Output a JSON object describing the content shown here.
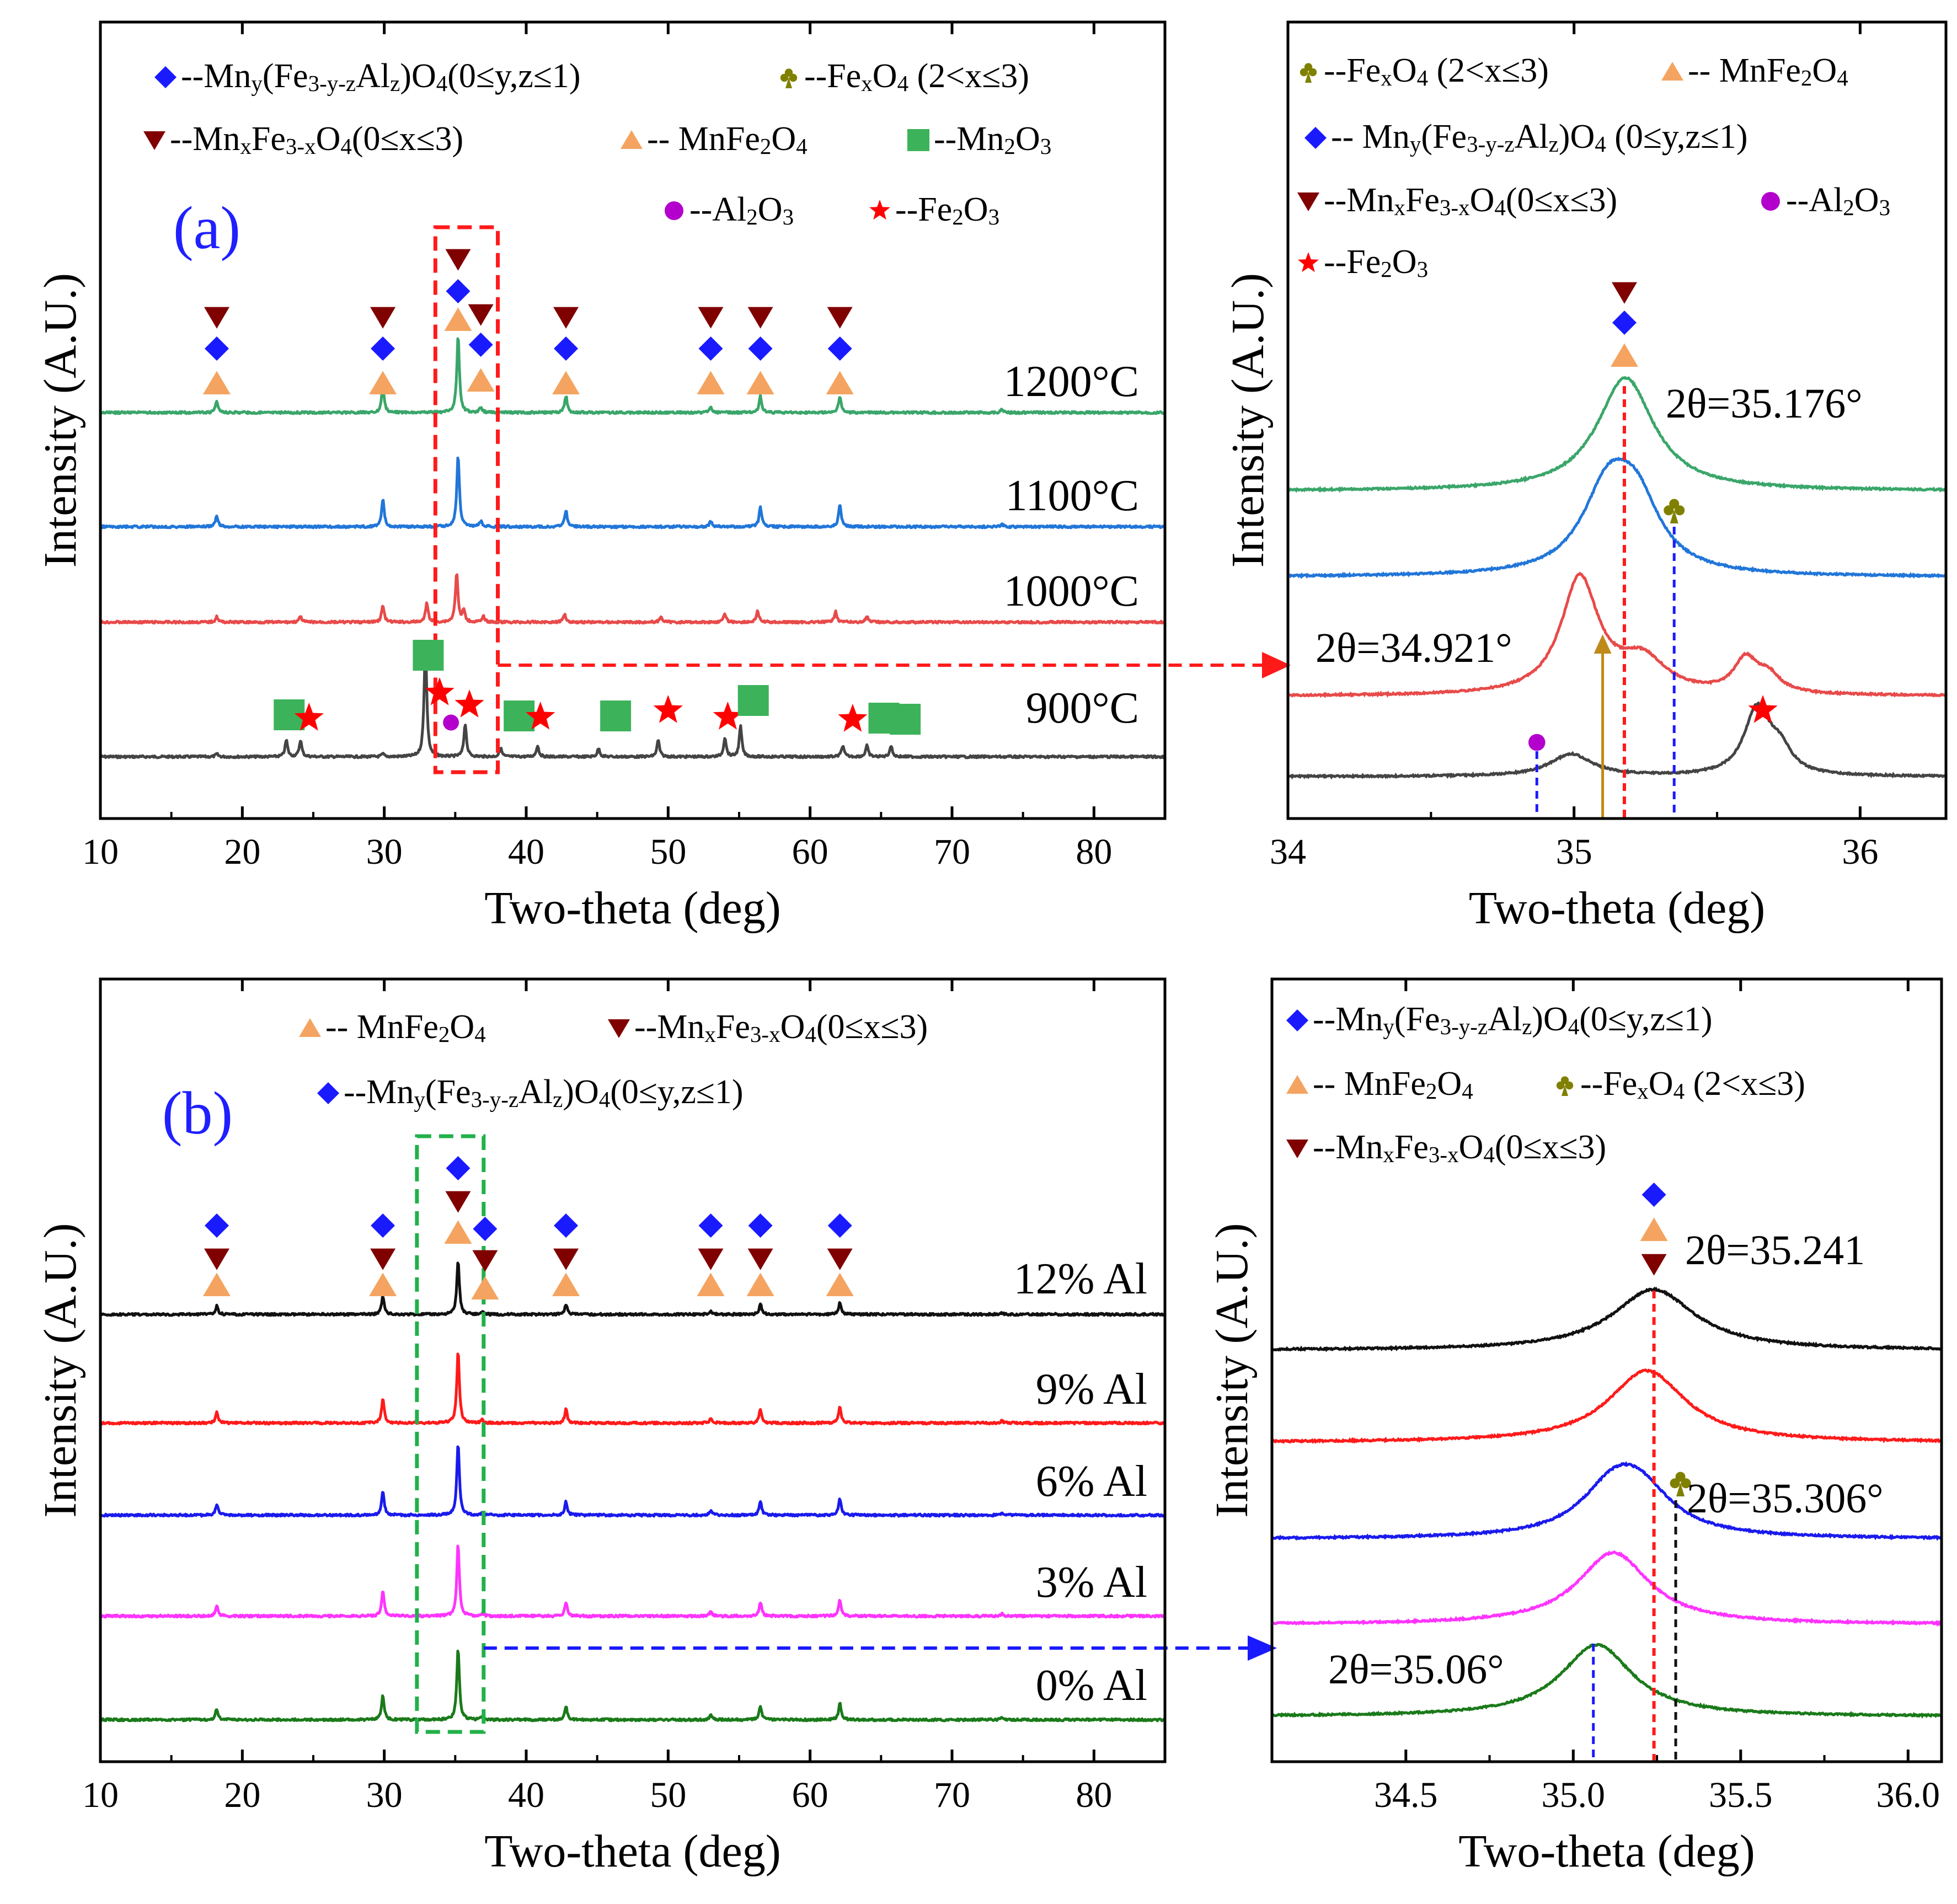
{
  "phases": {
    "spinel_al": "--Mn<sub>y</sub>(Fe<sub>3-y-z</sub>Al<sub>z</sub>)O<sub>4</sub>(0≤y,z≤1)",
    "fexo4": "--Fe<sub>x</sub>O<sub>4</sub> (2<x≤3)",
    "mnxfe": "--Mn<sub>x</sub>Fe<sub>3-x</sub>O<sub>4</sub>(0≤x≤3)",
    "mnfe2o4": "-- MnFe<sub>2</sub>O<sub>4</sub>",
    "mn2o3": "--Mn<sub>2</sub>O<sub>3</sub>",
    "al2o3": "--Al<sub>2</sub>O<sub>3</sub>",
    "fe2o3": "--Fe<sub>2</sub>O<sub>3</sub>",
    "spinel_al_spaced": "-- Mn<sub>y</sub>(Fe<sub>3-y-z</sub>Al<sub>z</sub>)O<sub>4</sub> (0≤y,z≤1)"
  },
  "colors": {
    "spinel_al": "#1a1aff",
    "fexo4": "#808000",
    "mnxfe": "#800000",
    "mnfe2o4": "#f4a460",
    "mn2o3": "#3cb35a",
    "al2o3": "#b300cc",
    "fe2o3": "#ff0000"
  },
  "chart_data": [
    {
      "id": "a_main",
      "type": "line",
      "panel_label": "(a)",
      "xlabel": "Two-theta (deg)",
      "ylabel": "Intensity (A.U.)",
      "xlim": [
        10,
        85
      ],
      "xticks": [
        10,
        20,
        30,
        40,
        50,
        60,
        70,
        80
      ],
      "ylim": [
        0,
        1
      ],
      "peaks_common": [
        18.2,
        29.9,
        35.2,
        36.8,
        42.8,
        53.0,
        56.5,
        62.1,
        73.5
      ],
      "series": [
        {
          "name": "900°C",
          "color": "#444444",
          "offset": 0.11,
          "peaks": [
            [
              18.2,
              0.005
            ],
            [
              23.1,
              0.03
            ],
            [
              24.1,
              0.03
            ],
            [
              29.9,
              0.005
            ],
            [
              32.9,
              0.21
            ],
            [
              35.7,
              0.06
            ],
            [
              38.2,
              0.015
            ],
            [
              40.8,
              0.02
            ],
            [
              45.1,
              0.015
            ],
            [
              49.3,
              0.03
            ],
            [
              54.0,
              0.035
            ],
            [
              55.1,
              0.055
            ],
            [
              62.3,
              0.02
            ],
            [
              64.0,
              0.02
            ],
            [
              65.7,
              0.02
            ]
          ]
        },
        {
          "name": "1000°C",
          "color": "#e84a4a",
          "offset": 0.375,
          "peaks": [
            [
              18.2,
              0.01
            ],
            [
              24.1,
              0.01
            ],
            [
              29.9,
              0.03
            ],
            [
              33.0,
              0.035
            ],
            [
              35.1,
              0.09
            ],
            [
              35.6,
              0.02
            ],
            [
              37.0,
              0.01
            ],
            [
              42.7,
              0.015
            ],
            [
              49.5,
              0.01
            ],
            [
              54.0,
              0.015
            ],
            [
              56.3,
              0.02
            ],
            [
              61.8,
              0.02
            ],
            [
              64.0,
              0.01
            ]
          ]
        },
        {
          "name": "1100°C",
          "color": "#2176d9",
          "offset": 0.6,
          "peaks": [
            [
              18.2,
              0.02
            ],
            [
              29.9,
              0.05
            ],
            [
              35.2,
              0.13
            ],
            [
              36.8,
              0.01
            ],
            [
              42.8,
              0.03
            ],
            [
              53.0,
              0.01
            ],
            [
              56.5,
              0.035
            ],
            [
              62.1,
              0.04
            ],
            [
              73.5,
              0.005
            ]
          ]
        },
        {
          "name": "1200°C",
          "color": "#3aa66a",
          "offset": 0.84,
          "peaks": [
            [
              18.2,
              0.02
            ],
            [
              29.9,
              0.05
            ],
            [
              35.2,
              0.14
            ],
            [
              36.8,
              0.01
            ],
            [
              42.8,
              0.03
            ],
            [
              53.0,
              0.01
            ],
            [
              56.5,
              0.03
            ],
            [
              62.1,
              0.03
            ],
            [
              73.5,
              0.005
            ]
          ]
        }
      ],
      "legend": [
        {
          "phase": "spinel_al",
          "order": 1
        },
        {
          "phase": "fexo4",
          "order": 2
        },
        {
          "phase": "mnxfe",
          "order": 3
        },
        {
          "phase": "mnfe2o4",
          "order": 4
        },
        {
          "phase": "mn2o3",
          "order": 5
        },
        {
          "phase": "al2o3",
          "order": 6
        },
        {
          "phase": "fe2o3",
          "order": 7
        }
      ],
      "highlight_x_range": [
        33.6,
        38.0
      ]
    },
    {
      "id": "a_zoom",
      "type": "line",
      "xlabel": "Two-theta (deg)",
      "ylabel": "Intensity (A.U.)",
      "xlim": [
        34,
        36.3
      ],
      "xticks": [
        34,
        35,
        36
      ],
      "series": [
        {
          "name": "900°C",
          "color": "#444444"
        },
        {
          "name": "1000°C",
          "color": "#e84a4a"
        },
        {
          "name": "1100°C",
          "color": "#2176d9"
        },
        {
          "name": "1200°C",
          "color": "#3aa66a"
        }
      ],
      "annotations": [
        "2θ=35.176°",
        "2θ=34.921°"
      ],
      "vlines": [
        34.87,
        35.1,
        35.176,
        35.35
      ]
    },
    {
      "id": "b_main",
      "type": "line",
      "panel_label": "(b)",
      "xlabel": "Two-theta (deg)",
      "ylabel": "Intensity (A.U.)",
      "xlim": [
        10,
        85
      ],
      "xticks": [
        10,
        20,
        30,
        40,
        50,
        60,
        70,
        80
      ],
      "series": [
        {
          "name": "0% Al",
          "color": "#1a7a1a",
          "offset": 0.1
        },
        {
          "name": "3% Al",
          "color": "#ff33ff",
          "offset": 0.32
        },
        {
          "name": "6% Al",
          "color": "#1a1aee",
          "offset": 0.55
        },
        {
          "name": "9% Al",
          "color": "#ff1a1a",
          "offset": 0.75
        },
        {
          "name": "12% Al",
          "color": "#111111",
          "offset": 0.97
        }
      ],
      "legend": [
        {
          "phase": "mnfe2o4"
        },
        {
          "phase": "mnxfe"
        },
        {
          "phase": "spinel_al"
        }
      ],
      "highlight_x_range": [
        32.3,
        37.0
      ]
    },
    {
      "id": "b_zoom",
      "type": "line",
      "xlabel": "Two-theta (deg)",
      "ylabel": "Intensity (A.U.)",
      "xlim": [
        34.1,
        36.1
      ],
      "xticks": [
        34.5,
        35.0,
        35.5,
        36.0
      ],
      "xtick_labels": [
        "34.5",
        "35.0",
        "35.5",
        "36.0"
      ],
      "series": [
        {
          "name": "0% Al",
          "color": "#1a7a1a"
        },
        {
          "name": "3% Al",
          "color": "#ff33ff"
        },
        {
          "name": "6% Al",
          "color": "#1a1aee"
        },
        {
          "name": "9% Al",
          "color": "#ff1a1a"
        },
        {
          "name": "12% Al",
          "color": "#111111"
        }
      ],
      "annotations": [
        "2θ=35.241",
        "2θ=35.306°",
        "2θ=35.06°"
      ],
      "vlines": [
        35.06,
        35.241,
        35.306
      ]
    }
  ]
}
